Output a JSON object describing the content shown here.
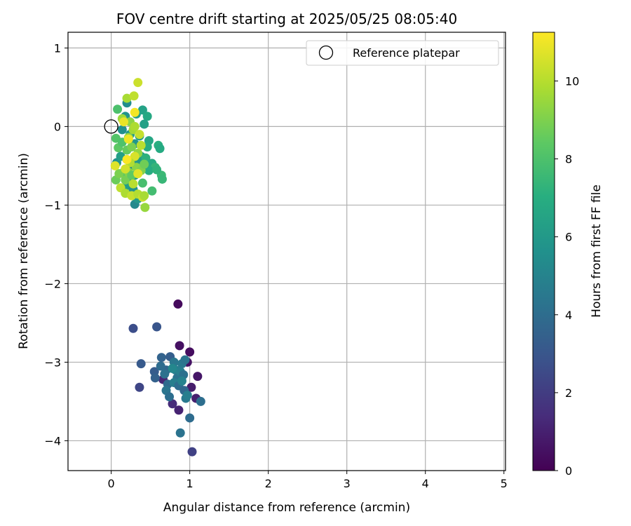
{
  "chart_data": {
    "type": "scatter",
    "title": "FOV centre drift starting at 2025/05/25 08:05:40",
    "xlabel": "Angular distance from reference (arcmin)",
    "ylabel": "Rotation from reference (arcmin)",
    "xlim": [
      -0.55,
      5.02
    ],
    "ylim": [
      -4.38,
      1.2
    ],
    "xticks": [
      0,
      1,
      2,
      3,
      4,
      5
    ],
    "yticks": [
      -4,
      -3,
      -2,
      -1,
      0,
      1
    ],
    "grid": true,
    "legend": {
      "placement": "top-right",
      "entries": [
        "Reference platepar"
      ]
    },
    "colorbar": {
      "label": "Hours from first FF file",
      "range": [
        0,
        11.25
      ],
      "ticks": [
        0,
        2,
        4,
        6,
        8,
        10
      ],
      "colormap": "viridis"
    },
    "reference_point": {
      "x": 0,
      "y": 0,
      "label": "Reference platepar"
    },
    "points": [
      {
        "x": 0.85,
        "y": -2.26,
        "h": 0.3
      },
      {
        "x": 1.0,
        "y": -2.87,
        "h": 0.4
      },
      {
        "x": 0.97,
        "y": -3.0,
        "h": 0.6
      },
      {
        "x": 1.1,
        "y": -3.18,
        "h": 0.7
      },
      {
        "x": 1.02,
        "y": -3.32,
        "h": 0.9
      },
      {
        "x": 1.08,
        "y": -3.46,
        "h": 1.0
      },
      {
        "x": 0.87,
        "y": -2.79,
        "h": 0.5
      },
      {
        "x": 0.66,
        "y": -3.22,
        "h": 1.2
      },
      {
        "x": 0.86,
        "y": -3.61,
        "h": 1.1
      },
      {
        "x": 0.78,
        "y": -3.53,
        "h": 1.4
      },
      {
        "x": 1.03,
        "y": -4.14,
        "h": 2.2
      },
      {
        "x": 0.28,
        "y": -2.57,
        "h": 2.7
      },
      {
        "x": 0.36,
        "y": -3.32,
        "h": 2.4
      },
      {
        "x": 0.58,
        "y": -2.55,
        "h": 3.0
      },
      {
        "x": 0.38,
        "y": -3.02,
        "h": 3.2
      },
      {
        "x": 0.55,
        "y": -3.12,
        "h": 3.3
      },
      {
        "x": 0.56,
        "y": -3.2,
        "h": 3.5
      },
      {
        "x": 0.64,
        "y": -2.94,
        "h": 3.6
      },
      {
        "x": 0.7,
        "y": -3.1,
        "h": 3.7
      },
      {
        "x": 0.75,
        "y": -2.93,
        "h": 3.4
      },
      {
        "x": 0.63,
        "y": -3.05,
        "h": 4.0
      },
      {
        "x": 0.68,
        "y": -3.15,
        "h": 4.2
      },
      {
        "x": 0.72,
        "y": -3.28,
        "h": 3.9
      },
      {
        "x": 0.7,
        "y": -3.36,
        "h": 4.4
      },
      {
        "x": 0.74,
        "y": -3.44,
        "h": 4.1
      },
      {
        "x": 0.8,
        "y": -3.0,
        "h": 4.5
      },
      {
        "x": 0.82,
        "y": -3.1,
        "h": 4.7
      },
      {
        "x": 0.84,
        "y": -3.2,
        "h": 4.3
      },
      {
        "x": 0.8,
        "y": -3.26,
        "h": 4.8
      },
      {
        "x": 0.86,
        "y": -3.3,
        "h": 4.0
      },
      {
        "x": 0.9,
        "y": -3.02,
        "h": 4.6
      },
      {
        "x": 0.88,
        "y": -3.12,
        "h": 4.9
      },
      {
        "x": 0.92,
        "y": -3.16,
        "h": 4.2
      },
      {
        "x": 0.9,
        "y": -3.24,
        "h": 5.0
      },
      {
        "x": 0.94,
        "y": -2.97,
        "h": 4.4
      },
      {
        "x": 0.93,
        "y": -3.36,
        "h": 3.8
      },
      {
        "x": 0.95,
        "y": -3.46,
        "h": 4.6
      },
      {
        "x": 0.97,
        "y": -3.42,
        "h": 4.8
      },
      {
        "x": 1.14,
        "y": -3.5,
        "h": 4.1
      },
      {
        "x": 0.88,
        "y": -3.9,
        "h": 4.3
      },
      {
        "x": 1.0,
        "y": -3.71,
        "h": 4.0
      },
      {
        "x": 0.78,
        "y": -3.08,
        "h": 5.2
      },
      {
        "x": 0.2,
        "y": 0.3,
        "h": 5.5
      },
      {
        "x": 0.18,
        "y": 0.13,
        "h": 5.8
      },
      {
        "x": 0.14,
        "y": -0.04,
        "h": 5.6
      },
      {
        "x": 0.24,
        "y": -0.1,
        "h": 6.0
      },
      {
        "x": 0.32,
        "y": 0.16,
        "h": 6.2
      },
      {
        "x": 0.4,
        "y": 0.21,
        "h": 6.5
      },
      {
        "x": 0.46,
        "y": 0.13,
        "h": 6.8
      },
      {
        "x": 0.42,
        "y": 0.03,
        "h": 6.4
      },
      {
        "x": 0.36,
        "y": -0.12,
        "h": 6.1
      },
      {
        "x": 0.3,
        "y": -0.22,
        "h": 5.9
      },
      {
        "x": 0.48,
        "y": -0.18,
        "h": 6.7
      },
      {
        "x": 0.46,
        "y": -0.26,
        "h": 7.0
      },
      {
        "x": 0.6,
        "y": -0.24,
        "h": 7.1
      },
      {
        "x": 0.62,
        "y": -0.28,
        "h": 6.9
      },
      {
        "x": 0.07,
        "y": -0.46,
        "h": 5.7
      },
      {
        "x": 0.12,
        "y": -0.38,
        "h": 6.3
      },
      {
        "x": 0.2,
        "y": -0.42,
        "h": 6.6
      },
      {
        "x": 0.26,
        "y": -0.5,
        "h": 5.4
      },
      {
        "x": 0.34,
        "y": -0.46,
        "h": 6.0
      },
      {
        "x": 0.38,
        "y": -0.38,
        "h": 6.2
      },
      {
        "x": 0.44,
        "y": -0.4,
        "h": 7.2
      },
      {
        "x": 0.52,
        "y": -0.47,
        "h": 6.9
      },
      {
        "x": 0.56,
        "y": -0.52,
        "h": 7.4
      },
      {
        "x": 0.48,
        "y": -0.56,
        "h": 7.0
      },
      {
        "x": 0.3,
        "y": -0.62,
        "h": 5.9
      },
      {
        "x": 0.24,
        "y": -0.7,
        "h": 5.6
      },
      {
        "x": 0.2,
        "y": -0.75,
        "h": 6.3
      },
      {
        "x": 0.28,
        "y": -0.8,
        "h": 5.8
      },
      {
        "x": 0.3,
        "y": -0.99,
        "h": 5.3
      },
      {
        "x": 0.34,
        "y": -0.92,
        "h": 6.0
      },
      {
        "x": 0.64,
        "y": -0.62,
        "h": 7.6
      },
      {
        "x": 0.65,
        "y": -0.67,
        "h": 7.5
      },
      {
        "x": 0.52,
        "y": -0.82,
        "h": 7.8
      },
      {
        "x": 0.58,
        "y": -0.55,
        "h": 7.3
      },
      {
        "x": 0.4,
        "y": -0.72,
        "h": 7.9
      },
      {
        "x": 0.08,
        "y": 0.22,
        "h": 8.0
      },
      {
        "x": 0.06,
        "y": -0.15,
        "h": 8.2
      },
      {
        "x": 0.09,
        "y": -0.27,
        "h": 8.4
      },
      {
        "x": 0.14,
        "y": -0.2,
        "h": 8.1
      },
      {
        "x": 0.2,
        "y": -0.3,
        "h": 8.6
      },
      {
        "x": 0.16,
        "y": -0.58,
        "h": 8.3
      },
      {
        "x": 0.06,
        "y": -0.68,
        "h": 8.7
      },
      {
        "x": 0.1,
        "y": -0.6,
        "h": 9.0
      },
      {
        "x": 0.18,
        "y": -0.68,
        "h": 8.9
      },
      {
        "x": 0.22,
        "y": -0.58,
        "h": 9.2
      },
      {
        "x": 0.26,
        "y": -0.62,
        "h": 8.5
      },
      {
        "x": 0.32,
        "y": -0.52,
        "h": 9.3
      },
      {
        "x": 0.38,
        "y": -0.56,
        "h": 9.1
      },
      {
        "x": 0.42,
        "y": -0.48,
        "h": 8.8
      },
      {
        "x": 0.34,
        "y": -0.34,
        "h": 9.4
      },
      {
        "x": 0.26,
        "y": -0.26,
        "h": 9.0
      },
      {
        "x": 0.22,
        "y": -0.14,
        "h": 9.5
      },
      {
        "x": 0.28,
        "y": -0.04,
        "h": 9.7
      },
      {
        "x": 0.24,
        "y": 0.06,
        "h": 9.3
      },
      {
        "x": 0.3,
        "y": 0.0,
        "h": 9.9
      },
      {
        "x": 0.14,
        "y": 0.1,
        "h": 9.6
      },
      {
        "x": 0.2,
        "y": 0.36,
        "h": 9.8
      },
      {
        "x": 0.29,
        "y": 0.39,
        "h": 10.2
      },
      {
        "x": 0.34,
        "y": 0.56,
        "h": 10.4
      },
      {
        "x": 0.36,
        "y": -0.1,
        "h": 10.3
      },
      {
        "x": 0.38,
        "y": -0.24,
        "h": 10.1
      },
      {
        "x": 0.3,
        "y": -0.38,
        "h": 10.6
      },
      {
        "x": 0.24,
        "y": -0.46,
        "h": 10.0
      },
      {
        "x": 0.18,
        "y": -0.54,
        "h": 10.5
      },
      {
        "x": 0.12,
        "y": -0.78,
        "h": 10.2
      },
      {
        "x": 0.18,
        "y": -0.85,
        "h": 9.9
      },
      {
        "x": 0.26,
        "y": -0.88,
        "h": 10.3
      },
      {
        "x": 0.34,
        "y": -0.86,
        "h": 10.0
      },
      {
        "x": 0.4,
        "y": -0.9,
        "h": 10.4
      },
      {
        "x": 0.42,
        "y": -0.88,
        "h": 9.8
      },
      {
        "x": 0.43,
        "y": -1.03,
        "h": 9.5
      },
      {
        "x": 0.05,
        "y": -0.5,
        "h": 10.7
      },
      {
        "x": 0.28,
        "y": -0.73,
        "h": 10.1
      },
      {
        "x": 0.22,
        "y": -0.16,
        "h": 11.0
      },
      {
        "x": 0.3,
        "y": 0.18,
        "h": 11.1
      },
      {
        "x": 0.2,
        "y": -0.42,
        "h": 11.2
      },
      {
        "x": 0.34,
        "y": -0.6,
        "h": 10.8
      },
      {
        "x": 0.16,
        "y": 0.06,
        "h": 10.9
      }
    ]
  }
}
